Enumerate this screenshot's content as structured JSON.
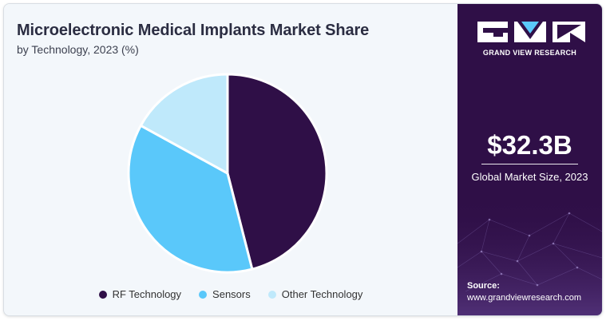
{
  "header": {
    "title": "Microelectronic Medical Implants Market Share",
    "subtitle": "by Technology, 2023 (%)"
  },
  "chart_data": {
    "type": "pie",
    "categories": [
      "RF Technology",
      "Sensors",
      "Other Technology"
    ],
    "values": [
      46,
      37,
      17
    ],
    "colors": [
      "#2f0f47",
      "#5ac8fa",
      "#bfe9fb"
    ],
    "legend_position": "bottom"
  },
  "sidebar": {
    "logo_text": "GRAND VIEW RESEARCH",
    "market_value": "$32.3B",
    "market_label": "Global Market Size, 2023",
    "source_label": "Source:",
    "source_url": "www.grandviewresearch.com"
  }
}
